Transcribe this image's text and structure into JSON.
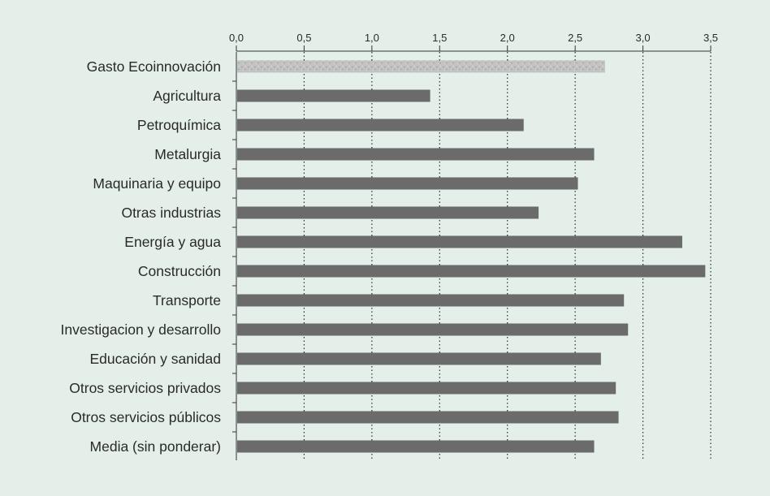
{
  "colors": {
    "background": "#e3efe8",
    "bar": "#6b6b6b",
    "bar_highlight": "#bdbdbd",
    "axis": "#333333",
    "grid": "#2a2a2a"
  },
  "chart_data": {
    "type": "bar",
    "orientation": "horizontal",
    "title": "",
    "xlabel": "",
    "ylabel": "",
    "xlim": [
      0,
      3.5
    ],
    "x_ticks": [
      "0,0",
      "0,5",
      "1,0",
      "1,5",
      "2,0",
      "2,5",
      "3,0",
      "3,5"
    ],
    "x_tick_values": [
      0,
      0.5,
      1.0,
      1.5,
      2.0,
      2.5,
      3.0,
      3.5
    ],
    "x_axis_position": "top",
    "grid": "vertical dotted",
    "legend": "none",
    "highlighted_category": "Gasto Ecoinnovación",
    "categories": [
      "Gasto Ecoinnovación",
      "Agricultura",
      "Petroquímica",
      "Metalurgia",
      "Maquinaria y equipo",
      "Otras industrias",
      "Energía y agua",
      "Construcción",
      "Transporte",
      "Investigacion y desarrollo",
      "Educación y sanidad",
      "Otros servicios privados",
      "Otros servicios públicos",
      "Media (sin ponderar)"
    ],
    "values": [
      2.72,
      1.43,
      2.12,
      2.64,
      2.52,
      2.23,
      3.29,
      3.46,
      2.86,
      2.89,
      2.69,
      2.8,
      2.82,
      2.64
    ]
  }
}
